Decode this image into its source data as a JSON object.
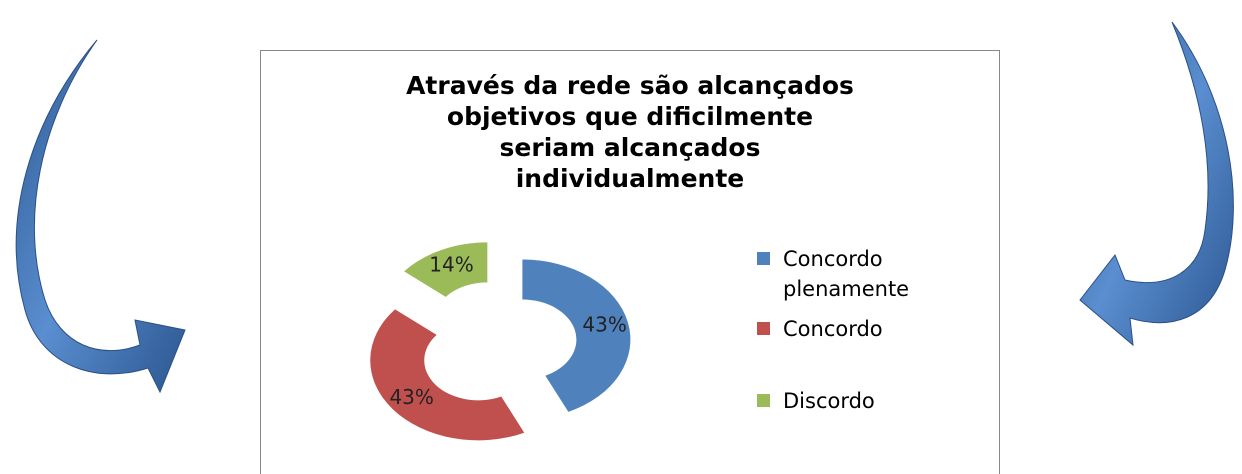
{
  "chart_data": {
    "type": "doughnut",
    "title": "Através da rede são alcançados objetivos que dificilmente seriam alcançados individualmente",
    "categories": [
      "Concordo plenamente",
      "Concordo",
      "Discordo"
    ],
    "values": [
      43,
      43,
      14
    ],
    "value_labels": [
      "43%",
      "43%",
      "14%"
    ],
    "colors": [
      "#4f81bd",
      "#c0504d",
      "#9bbb59"
    ]
  }
}
